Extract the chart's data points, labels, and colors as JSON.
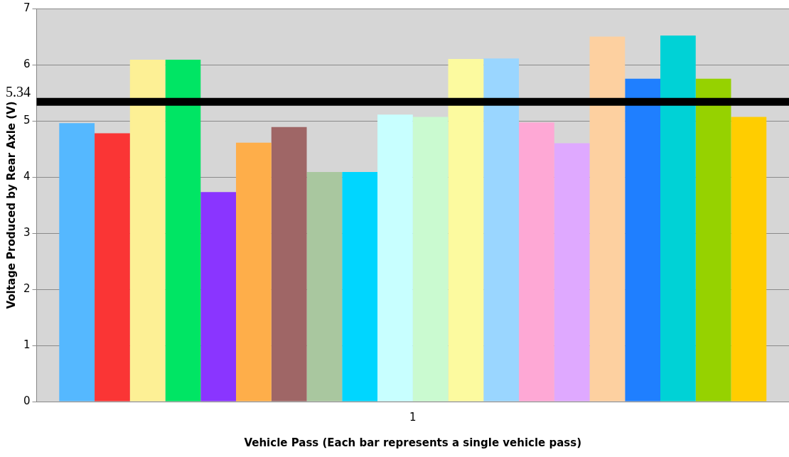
{
  "chart_data": {
    "type": "bar",
    "xlabel": "Vehicle Pass (Each bar represents a single vehicle pass)",
    "ylabel": "Voltage Produced by Rear Axle (V)",
    "categories": [
      "1"
    ],
    "ylim": [
      0,
      7
    ],
    "yticks": [
      0,
      1,
      2,
      3,
      4,
      5,
      6,
      7
    ],
    "grid": "y",
    "legend": false,
    "series": [
      {
        "color": "#55b8ff",
        "values": [
          4.96
        ]
      },
      {
        "color": "#fa3535",
        "values": [
          4.78
        ]
      },
      {
        "color": "#fdf095",
        "values": [
          6.09
        ]
      },
      {
        "color": "#00e564",
        "values": [
          6.09
        ]
      },
      {
        "color": "#8a35ff",
        "values": [
          3.73
        ]
      },
      {
        "color": "#feae4a",
        "values": [
          4.61
        ]
      },
      {
        "color": "#9f6666",
        "values": [
          4.89
        ]
      },
      {
        "color": "#a9c79f",
        "values": [
          4.09
        ]
      },
      {
        "color": "#00d6ff",
        "values": [
          4.09
        ]
      },
      {
        "color": "#c8ffff",
        "values": [
          5.11
        ]
      },
      {
        "color": "#cafad0",
        "values": [
          5.07
        ]
      },
      {
        "color": "#fcfa9f",
        "values": [
          6.1
        ]
      },
      {
        "color": "#9ad6ff",
        "values": [
          6.11
        ]
      },
      {
        "color": "#fea8d5",
        "values": [
          4.97
        ]
      },
      {
        "color": "#dfa9ff",
        "values": [
          4.6
        ]
      },
      {
        "color": "#fdd0a0",
        "values": [
          6.5
        ]
      },
      {
        "color": "#1f7fff",
        "values": [
          5.75
        ]
      },
      {
        "color": "#00d2d6",
        "values": [
          6.52
        ]
      },
      {
        "color": "#96d200",
        "values": [
          5.75
        ]
      },
      {
        "color": "#ffcd00",
        "values": [
          5.07
        ]
      }
    ],
    "ref_lines": [
      {
        "axis": "y",
        "value": 5.34,
        "label": "5.34",
        "color": "#000000"
      }
    ]
  }
}
